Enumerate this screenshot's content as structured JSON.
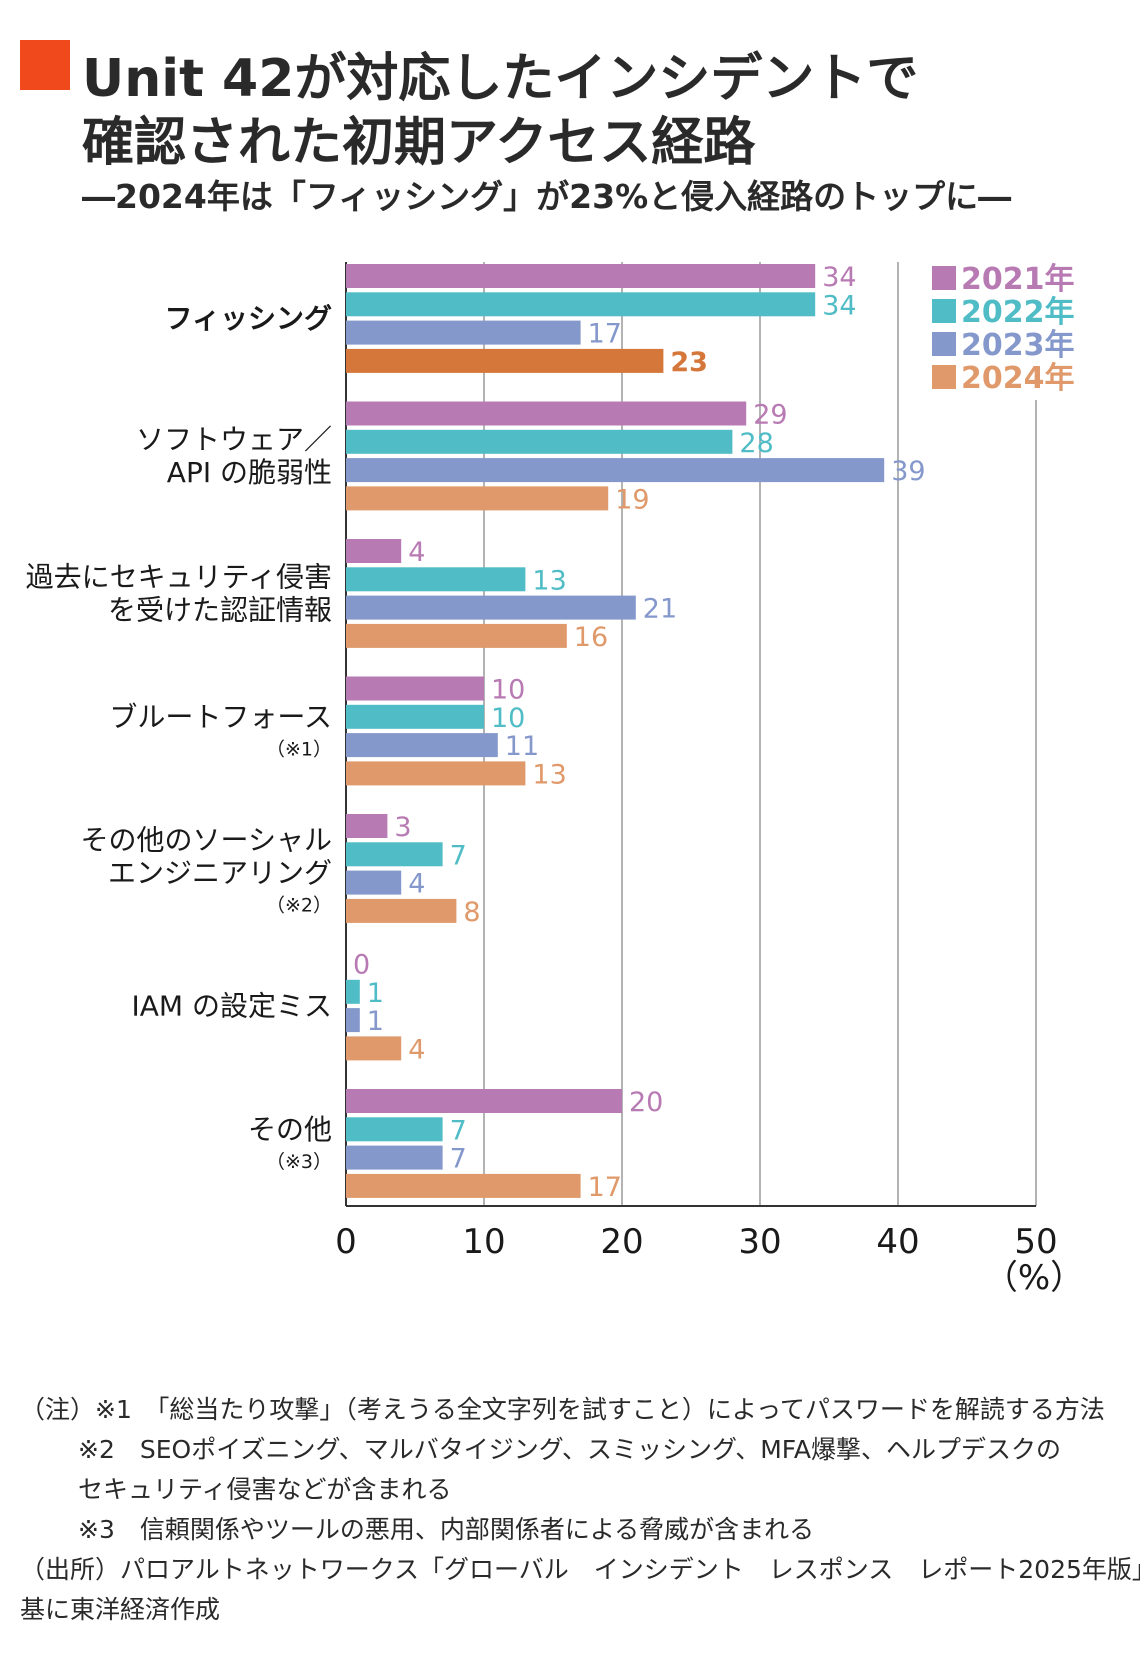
{
  "title": {
    "line1": "Unit 42が対応したインシデントで",
    "line2": "確認された初期アクセス経路",
    "subtitle": "―2024年は「フィッシング」が23%と侵入経路のトップに―"
  },
  "colors": {
    "title_mark": "#f04a1c",
    "s2021": "#b87ab3",
    "s2022": "#4fbcc6",
    "s2023": "#8598cc",
    "s2024": "#e0996a",
    "highlight": "#d5763a"
  },
  "chart_data": {
    "type": "bar",
    "orientation": "horizontal",
    "categories": [
      [
        "フィッシング"
      ],
      [
        "ソフトウェア／",
        "API の脆弱性"
      ],
      [
        "過去にセキュリティ侵害",
        "を受けた認証情報"
      ],
      [
        "ブルートフォース"
      ],
      [
        "その他のソーシャル",
        "エンジニアリング"
      ],
      [
        "IAM の設定ミス"
      ],
      [
        "その他"
      ]
    ],
    "category_notes": [
      "",
      "",
      "",
      "（※1）",
      "（※2）",
      "",
      "（※3）"
    ],
    "series": [
      {
        "name": "2021年",
        "values": [
          34,
          29,
          4,
          10,
          3,
          0,
          20
        ]
      },
      {
        "name": "2022年",
        "values": [
          34,
          28,
          13,
          10,
          7,
          1,
          7
        ]
      },
      {
        "name": "2023年",
        "values": [
          17,
          39,
          21,
          11,
          4,
          1,
          7
        ]
      },
      {
        "name": "2024年",
        "values": [
          23,
          19,
          16,
          13,
          8,
          4,
          17
        ]
      }
    ],
    "highlight": {
      "category_index": 0,
      "series_index": 3
    },
    "xlim": [
      0,
      50
    ],
    "xticks": [
      "0",
      "10",
      "20",
      "30",
      "40",
      "50"
    ],
    "unit": "（%）",
    "legend_position": "top-right",
    "grid": true
  },
  "notes": [
    "（注）※1　「総当たり攻撃」（考えうる全文字列を試すこと）によってパスワードを解読する方法",
    "※2　SEOポイズニング、マルバタイジング、スミッシング、MFA爆撃、ヘルプデスクの",
    "セキュリティ侵害などが含まれる",
    "※3　信頼関係やツールの悪用、内部関係者による脅威が含まれる",
    "（出所）パロアルトネットワークス「グローバル　インシデント　レスポンス　レポート2025年版」を",
    "基に東洋経済作成"
  ]
}
